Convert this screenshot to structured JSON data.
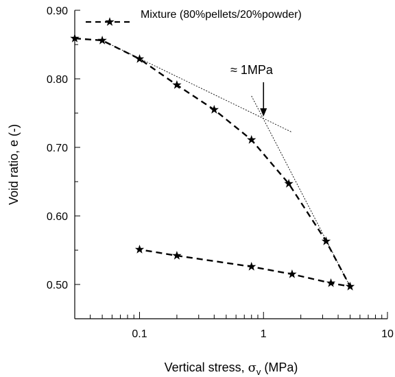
{
  "chart_data": {
    "type": "line",
    "title": "",
    "xlabel_main": "Vertical stress, ",
    "xlabel_sigma": "σ",
    "xlabel_sub": "v",
    "xlabel_unit": " (MPa)",
    "ylabel": "Void ratio, e (-)",
    "xscale": "log",
    "xlim": [
      0.03,
      10
    ],
    "ylim": [
      0.45,
      0.9
    ],
    "xticks": [
      {
        "value": 0.1,
        "label": "0.1"
      },
      {
        "value": 1,
        "label": "1"
      },
      {
        "value": 10,
        "label": "10"
      }
    ],
    "yticks": [
      {
        "value": 0.5,
        "label": "0.50"
      },
      {
        "value": 0.6,
        "label": "0.60"
      },
      {
        "value": 0.7,
        "label": "0.70"
      },
      {
        "value": 0.8,
        "label": "0.80"
      },
      {
        "value": 0.9,
        "label": "0.90"
      }
    ],
    "grid": false,
    "legend": {
      "position": "top-left",
      "label": "Mixture (80%pellets/20%powder)"
    },
    "series": [
      {
        "name": "Mixture (80%pellets/20%powder)",
        "marker": "star",
        "line": "dashed",
        "points": [
          {
            "x": 0.03,
            "y": 0.859
          },
          {
            "x": 0.05,
            "y": 0.856
          },
          {
            "x": 0.1,
            "y": 0.829
          },
          {
            "x": 0.2,
            "y": 0.791
          },
          {
            "x": 0.4,
            "y": 0.755
          },
          {
            "x": 0.8,
            "y": 0.711
          },
          {
            "x": 1.6,
            "y": 0.647
          },
          {
            "x": 3.2,
            "y": 0.563
          },
          {
            "x": 5.0,
            "y": 0.497
          },
          {
            "x": 3.5,
            "y": 0.502
          },
          {
            "x": 1.7,
            "y": 0.515
          },
          {
            "x": 0.8,
            "y": 0.526
          },
          {
            "x": 0.2,
            "y": 0.542
          },
          {
            "x": 0.1,
            "y": 0.551
          }
        ]
      }
    ],
    "construction_lines": [
      {
        "x1": 0.05,
        "y1": 0.856,
        "x2": 1.7,
        "y2": 0.722
      },
      {
        "x1": 0.8,
        "y1": 0.775,
        "x2": 5.0,
        "y2": 0.497
      }
    ],
    "annotation": {
      "text": "≈ 1MPa",
      "arrow_x": 1,
      "arrow_from_y": 0.795,
      "arrow_to_y": 0.745
    }
  }
}
